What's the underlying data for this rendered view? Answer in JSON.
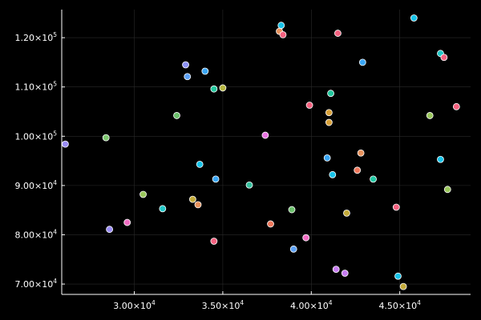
{
  "colors": {
    "background": "#000000",
    "axis": "#ffffff",
    "grid": "#2a2a2a",
    "text": "#ffffff",
    "marker_edge": "#ffffff"
  },
  "chart_data": {
    "type": "scatter",
    "title": "",
    "xlabel": "",
    "ylabel": "",
    "legend": false,
    "grid": true,
    "xlim": [
      25900,
      49000
    ],
    "ylim": [
      67900,
      125700
    ],
    "x_ticks": [
      {
        "value": 30000,
        "label": "3.00×10⁴"
      },
      {
        "value": 35000,
        "label": "3.50×10⁴"
      },
      {
        "value": 40000,
        "label": "4.00×10⁴"
      },
      {
        "value": 45000,
        "label": "4.50×10⁴"
      }
    ],
    "y_ticks": [
      {
        "value": 70000,
        "label": "7.00×10⁴"
      },
      {
        "value": 80000,
        "label": "8.00×10⁴"
      },
      {
        "value": 90000,
        "label": "9.00×10⁴"
      },
      {
        "value": 100000,
        "label": "1.00×10⁵"
      },
      {
        "value": 110000,
        "label": "1.10×10⁵"
      },
      {
        "value": 120000,
        "label": "1.20×10⁵"
      }
    ],
    "points": [
      {
        "x": 26100,
        "y": 98400,
        "color": "#9b8ef5"
      },
      {
        "x": 28400,
        "y": 99700,
        "color": "#7ec770"
      },
      {
        "x": 28600,
        "y": 81100,
        "color": "#9b8ef5"
      },
      {
        "x": 29600,
        "y": 82500,
        "color": "#f26dc4"
      },
      {
        "x": 30500,
        "y": 88200,
        "color": "#9ac75c"
      },
      {
        "x": 31600,
        "y": 85300,
        "color": "#22c7c7"
      },
      {
        "x": 32400,
        "y": 104200,
        "color": "#6cc06c"
      },
      {
        "x": 32900,
        "y": 114500,
        "color": "#8e92f5"
      },
      {
        "x": 33000,
        "y": 112100,
        "color": "#5da1f5"
      },
      {
        "x": 33300,
        "y": 87200,
        "color": "#c4ab3a"
      },
      {
        "x": 33600,
        "y": 86100,
        "color": "#e8925c"
      },
      {
        "x": 33700,
        "y": 94300,
        "color": "#18c4ea"
      },
      {
        "x": 34000,
        "y": 113200,
        "color": "#3aa6f5"
      },
      {
        "x": 34500,
        "y": 109600,
        "color": "#22c79d"
      },
      {
        "x": 34500,
        "y": 78700,
        "color": "#f56280"
      },
      {
        "x": 34600,
        "y": 91300,
        "color": "#3aa6f5"
      },
      {
        "x": 35000,
        "y": 109800,
        "color": "#b6b640"
      },
      {
        "x": 36500,
        "y": 90100,
        "color": "#35bf9d"
      },
      {
        "x": 37400,
        "y": 100200,
        "color": "#e874e2"
      },
      {
        "x": 37700,
        "y": 82200,
        "color": "#f0785c"
      },
      {
        "x": 38200,
        "y": 121300,
        "color": "#e8925c"
      },
      {
        "x": 38300,
        "y": 122500,
        "color": "#18c4ea"
      },
      {
        "x": 38400,
        "y": 120600,
        "color": "#f56280"
      },
      {
        "x": 38900,
        "y": 85100,
        "color": "#6cc06c"
      },
      {
        "x": 39000,
        "y": 77100,
        "color": "#5da1f5"
      },
      {
        "x": 39700,
        "y": 79400,
        "color": "#f26dc4"
      },
      {
        "x": 39900,
        "y": 106300,
        "color": "#f56280"
      },
      {
        "x": 40900,
        "y": 95600,
        "color": "#3aa6f5"
      },
      {
        "x": 41000,
        "y": 104800,
        "color": "#d9a23a"
      },
      {
        "x": 41000,
        "y": 102800,
        "color": "#d9a23a"
      },
      {
        "x": 41100,
        "y": 108700,
        "color": "#22c79d"
      },
      {
        "x": 41200,
        "y": 92200,
        "color": "#18c4ea"
      },
      {
        "x": 41400,
        "y": 73000,
        "color": "#c77df2"
      },
      {
        "x": 41500,
        "y": 120900,
        "color": "#f56280"
      },
      {
        "x": 41900,
        "y": 72200,
        "color": "#c77df2"
      },
      {
        "x": 42000,
        "y": 84400,
        "color": "#c4ab3a"
      },
      {
        "x": 42600,
        "y": 93100,
        "color": "#f0785c"
      },
      {
        "x": 42800,
        "y": 96600,
        "color": "#e8925c"
      },
      {
        "x": 42900,
        "y": 115000,
        "color": "#3aa6f5"
      },
      {
        "x": 43500,
        "y": 91300,
        "color": "#22c7a3"
      },
      {
        "x": 44800,
        "y": 85600,
        "color": "#f56280"
      },
      {
        "x": 44900,
        "y": 71600,
        "color": "#18c4ea"
      },
      {
        "x": 45200,
        "y": 69500,
        "color": "#c4ab3a"
      },
      {
        "x": 45800,
        "y": 124000,
        "color": "#18c4ea"
      },
      {
        "x": 46700,
        "y": 104200,
        "color": "#9ac75c"
      },
      {
        "x": 47300,
        "y": 95300,
        "color": "#18c4ea"
      },
      {
        "x": 47300,
        "y": 116800,
        "color": "#22c7c7"
      },
      {
        "x": 47500,
        "y": 116000,
        "color": "#f56280"
      },
      {
        "x": 47700,
        "y": 89200,
        "color": "#9ac75c"
      },
      {
        "x": 48200,
        "y": 106000,
        "color": "#f56280"
      }
    ]
  }
}
